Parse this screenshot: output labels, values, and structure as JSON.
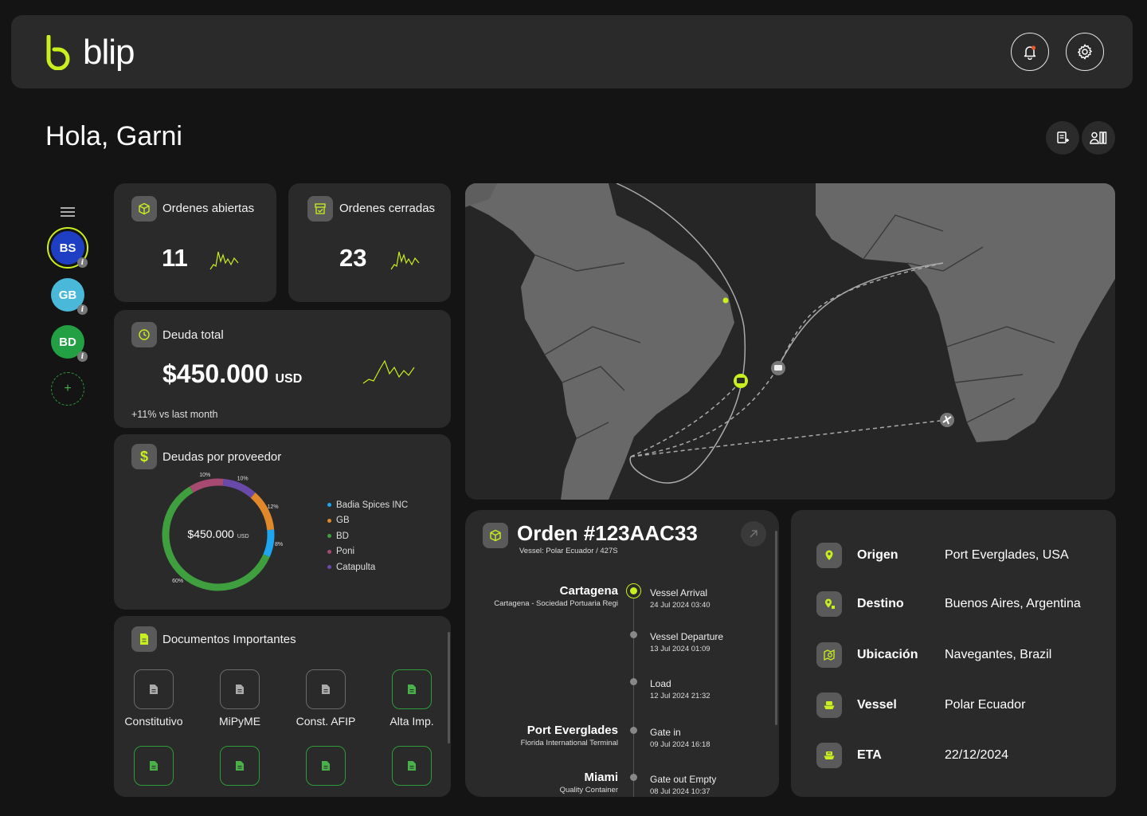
{
  "header": {
    "brand": "blip",
    "notifications_icon": "bell-icon",
    "settings_icon": "gear-icon"
  },
  "greeting": "Hola, Garni",
  "sidebar": {
    "menu_icon": "hamburger-icon",
    "accounts": [
      {
        "initials": "BS",
        "color": "#1e3fc4",
        "active": true
      },
      {
        "initials": "GB",
        "color": "#4ab8d8",
        "active": false
      },
      {
        "initials": "BD",
        "color": "#24a044",
        "active": false
      }
    ],
    "add_label": "+"
  },
  "stats": {
    "open_orders": {
      "label": "Ordenes abiertas",
      "value": "11"
    },
    "closed_orders": {
      "label": "Ordenes cerradas",
      "value": "23"
    },
    "total_debt": {
      "label": "Deuda total",
      "value": "$450.000",
      "currency": "USD",
      "change": "+11% vs last month"
    }
  },
  "debts_by_provider": {
    "title": "Deudas por proveedor",
    "center_value": "$450.000",
    "center_currency": "USD",
    "chart_data": {
      "type": "pie",
      "title": "Deudas por proveedor",
      "series": [
        {
          "name": "Badia Spices INC",
          "value": 8,
          "label": "8%",
          "color": "#1ea7f0"
        },
        {
          "name": "GB",
          "value": 12,
          "label": "12%",
          "color": "#e0882a"
        },
        {
          "name": "BD",
          "value": 60,
          "label": "60%",
          "color": "#3f9f3f"
        },
        {
          "name": "Poni",
          "value": 10,
          "label": "10%",
          "color": "#a64a72"
        },
        {
          "name": "Catapulta",
          "value": 10,
          "label": "10%",
          "color": "#6a4aa8"
        }
      ],
      "legend": "right"
    }
  },
  "documents": {
    "title": "Documentos Importantes",
    "items": [
      {
        "label": "Constitutivo",
        "state": "empty"
      },
      {
        "label": "MiPyME",
        "state": "empty"
      },
      {
        "label": "Const. AFIP",
        "state": "empty"
      },
      {
        "label": "Alta Imp.",
        "state": "done"
      },
      {
        "label": "",
        "state": "done"
      },
      {
        "label": "",
        "state": "done"
      },
      {
        "label": "",
        "state": "done"
      },
      {
        "label": "",
        "state": "done"
      }
    ]
  },
  "order": {
    "title": "Orden #123AAC33",
    "vessel_info": "Vessel: Polar Ecuador / 427S",
    "timeline": [
      {
        "place": "Cartagena",
        "place_sub": "Cartagena - Sociedad Portuaria Regi",
        "event": "Vessel Arrival",
        "date": "24 Jul 2024 03:40",
        "current": true
      },
      {
        "place": "",
        "place_sub": "",
        "event": "Vessel Departure",
        "date": "13 Jul 2024 01:09",
        "current": false
      },
      {
        "place": "",
        "place_sub": "",
        "event": "Load",
        "date": "12 Jul 2024 21:32",
        "current": false
      },
      {
        "place": "Port Everglades",
        "place_sub": "Florida International Terminal",
        "event": "Gate in",
        "date": "09 Jul 2024 16:18",
        "current": false
      },
      {
        "place": "Miami",
        "place_sub": "Quality Container",
        "event": "Gate out Empty",
        "date": "08 Jul 2024 10:37",
        "current": false
      }
    ]
  },
  "shipment_info": {
    "rows": [
      {
        "label": "Origen",
        "value": "Port Everglades, USA",
        "icon": "location-pin-icon"
      },
      {
        "label": "Destino",
        "value": "Buenos Aires, Argentina",
        "icon": "location-flag-icon"
      },
      {
        "label": "Ubicación",
        "value": "Navegantes, Brazil",
        "icon": "map-search-icon"
      },
      {
        "label": "Vessel",
        "value": "Polar Ecuador",
        "icon": "ship-icon"
      },
      {
        "label": "ETA",
        "value": "22/12/2024",
        "icon": "ship-clock-icon"
      }
    ]
  },
  "colors": {
    "accent": "#c8f01e",
    "card": "#2a2a2a",
    "background": "#141414"
  }
}
